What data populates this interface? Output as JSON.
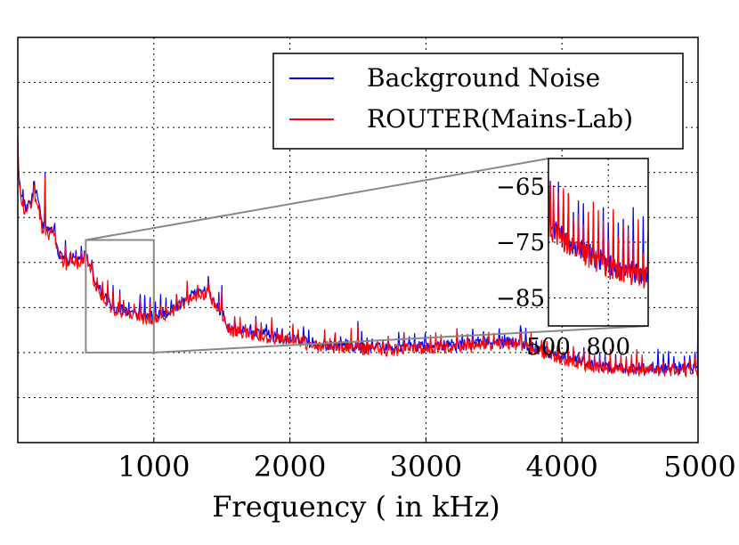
{
  "chart_data": {
    "type": "line",
    "title": "",
    "xlabel": "Frequency ( in kHz)",
    "ylabel": "",
    "xlim": [
      0,
      5000
    ],
    "ylim": [
      -110,
      -20
    ],
    "grid": true,
    "x_ticks": [
      1000,
      2000,
      3000,
      4000,
      5000
    ],
    "x_tick_labels": [
      "1000",
      "2000",
      "3000",
      "4000",
      "5000"
    ],
    "y_ticks": [
      -30,
      -40,
      -50,
      -60,
      -70,
      -80,
      -90,
      -100
    ],
    "legend": {
      "placement": "top-right",
      "entries": [
        "Background Noise",
        "ROUTER(Mains-Lab)"
      ]
    },
    "series": [
      {
        "name": "Background Noise",
        "color": "#0000ff",
        "x": [
          0,
          20,
          60,
          100,
          140,
          180,
          220,
          260,
          300,
          350,
          400,
          450,
          500,
          550,
          600,
          700,
          800,
          900,
          1000,
          1100,
          1200,
          1300,
          1350,
          1400,
          1450,
          1500,
          1550,
          1600,
          1700,
          1800,
          2000,
          2200,
          2400,
          2600,
          2800,
          3000,
          3200,
          3400,
          3600,
          3700,
          3800,
          4000,
          4200,
          4400,
          4600,
          4800,
          5000
        ],
        "y": [
          -45,
          -55,
          -58,
          -56,
          -55,
          -62,
          -63,
          -62,
          -68,
          -70,
          -69,
          -70,
          -68,
          -73,
          -76,
          -80,
          -81,
          -82,
          -82,
          -81,
          -79,
          -77,
          -77,
          -76,
          -79,
          -81,
          -85,
          -85,
          -85.5,
          -86,
          -87,
          -88,
          -88.5,
          -89,
          -89,
          -88.5,
          -88.5,
          -88,
          -87.5,
          -88,
          -89,
          -91,
          -92.5,
          -93.5,
          -93.5,
          -93.5,
          -93.5
        ],
        "spikes": [
          {
            "x": 0,
            "y": -42
          },
          {
            "x": 120,
            "y": -52
          },
          {
            "x": 200,
            "y": -50
          },
          {
            "x": 350,
            "y": -65
          },
          {
            "x": 500,
            "y": -69
          },
          {
            "x": 550,
            "y": -71
          },
          {
            "x": 700,
            "y": -75
          },
          {
            "x": 750,
            "y": -76
          },
          {
            "x": 900,
            "y": -77
          },
          {
            "x": 1300,
            "y": -76
          },
          {
            "x": 1400,
            "y": -73
          },
          {
            "x": 1500,
            "y": -75
          },
          {
            "x": 2500,
            "y": -83
          },
          {
            "x": 3700,
            "y": -85
          },
          {
            "x": 5000,
            "y": -80
          }
        ]
      },
      {
        "name": "ROUTER(Mains-Lab)",
        "color": "#ff0000",
        "x": [
          0,
          20,
          60,
          100,
          140,
          180,
          220,
          260,
          300,
          350,
          400,
          450,
          500,
          550,
          600,
          700,
          800,
          900,
          1000,
          1100,
          1200,
          1300,
          1350,
          1400,
          1450,
          1500,
          1550,
          1600,
          1700,
          1800,
          2000,
          2200,
          2400,
          2600,
          2800,
          3000,
          3200,
          3400,
          3600,
          3700,
          3800,
          4000,
          4200,
          4400,
          4600,
          4800,
          5000
        ],
        "y": [
          -46,
          -56,
          -59,
          -57,
          -56,
          -63,
          -64,
          -63,
          -68.5,
          -70.5,
          -69.5,
          -70.5,
          -68.5,
          -73.5,
          -76.5,
          -80.5,
          -81.5,
          -82.5,
          -82.5,
          -81.5,
          -79.5,
          -77.5,
          -77.5,
          -76.5,
          -79.5,
          -81.5,
          -85.5,
          -85.5,
          -86,
          -86.5,
          -87.5,
          -88.5,
          -89,
          -89.5,
          -89.5,
          -89,
          -89,
          -88.5,
          -88,
          -88.5,
          -89.5,
          -91.5,
          -93,
          -94,
          -94,
          -94,
          -94
        ],
        "spikes": [
          {
            "x": 0,
            "y": -43
          },
          {
            "x": 120,
            "y": -53
          },
          {
            "x": 200,
            "y": -51
          },
          {
            "x": 350,
            "y": -66
          },
          {
            "x": 500,
            "y": -70
          },
          {
            "x": 550,
            "y": -72
          },
          {
            "x": 700,
            "y": -76
          },
          {
            "x": 750,
            "y": -77
          },
          {
            "x": 900,
            "y": -78
          },
          {
            "x": 1300,
            "y": -77
          },
          {
            "x": 1400,
            "y": -74
          },
          {
            "x": 1500,
            "y": -76
          },
          {
            "x": 2500,
            "y": -84
          },
          {
            "x": 3700,
            "y": -86
          },
          {
            "x": 5000,
            "y": -82
          }
        ]
      }
    ],
    "zoom_region": {
      "x_range": [
        500,
        1000
      ],
      "y_range": [
        -90,
        -65
      ]
    },
    "inset": {
      "xlim": [
        500,
        1000
      ],
      "ylim": [
        -90,
        -60
      ],
      "x_ticks": [
        500,
        800
      ],
      "x_tick_labels": [
        "500",
        "800"
      ],
      "y_ticks": [
        -65,
        -75,
        -85
      ],
      "y_tick_labels": [
        "−65",
        "−75",
        "−85"
      ]
    }
  }
}
